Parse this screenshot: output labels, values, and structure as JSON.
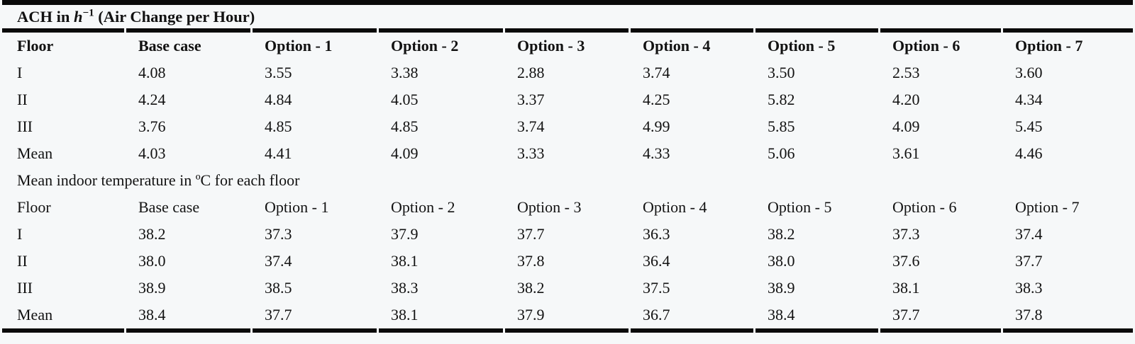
{
  "page": {
    "background": "#f6f8f9",
    "rule_color": "#0a0a0a",
    "text_color": "#121212"
  },
  "table": {
    "title_prefix": "ACH in ",
    "title_variable": "h",
    "title_superscript": "−1",
    "title_suffix": " (Air Change per Hour)",
    "sections": [
      {
        "name": "ach",
        "header_bold": true,
        "header": [
          "Floor",
          "Base case",
          "Option - 1",
          "Option - 2",
          "Option - 3",
          "Option - 4",
          "Option - 5",
          "Option - 6",
          "Option - 7"
        ],
        "rows": [
          {
            "label": "I",
            "values": [
              "4.08",
              "3.55",
              "3.38",
              "2.88",
              "3.74",
              "3.50",
              "2.53",
              "3.60"
            ]
          },
          {
            "label": "II",
            "values": [
              "4.24",
              "4.84",
              "4.05",
              "3.37",
              "4.25",
              "5.82",
              "4.20",
              "4.34"
            ]
          },
          {
            "label": "III",
            "values": [
              "3.76",
              "4.85",
              "4.85",
              "3.74",
              "4.99",
              "5.85",
              "4.09",
              "5.45"
            ]
          },
          {
            "label": "Mean",
            "values": [
              "4.03",
              "4.41",
              "4.09",
              "3.33",
              "4.33",
              "5.06",
              "3.61",
              "4.46"
            ]
          }
        ]
      },
      {
        "name": "temperature",
        "section_title": "Mean indoor temperature in ºC for each floor",
        "header_bold": false,
        "header": [
          "Floor",
          "Base case",
          "Option - 1",
          "Option - 2",
          "Option - 3",
          "Option - 4",
          "Option - 5",
          "Option - 6",
          "Option - 7"
        ],
        "rows": [
          {
            "label": "I",
            "values": [
              "38.2",
              "37.3",
              "37.9",
              "37.7",
              "36.3",
              "38.2",
              "37.3",
              "37.4"
            ]
          },
          {
            "label": "II",
            "values": [
              "38.0",
              "37.4",
              "38.1",
              "37.8",
              "36.4",
              "38.0",
              "37.6",
              "37.7"
            ]
          },
          {
            "label": "III",
            "values": [
              "38.9",
              "38.5",
              "38.3",
              "38.2",
              "37.5",
              "38.9",
              "38.1",
              "38.3"
            ]
          },
          {
            "label": "Mean",
            "values": [
              "38.4",
              "37.7",
              "38.1",
              "37.9",
              "36.7",
              "38.4",
              "37.7",
              "37.8"
            ]
          }
        ]
      }
    ]
  }
}
